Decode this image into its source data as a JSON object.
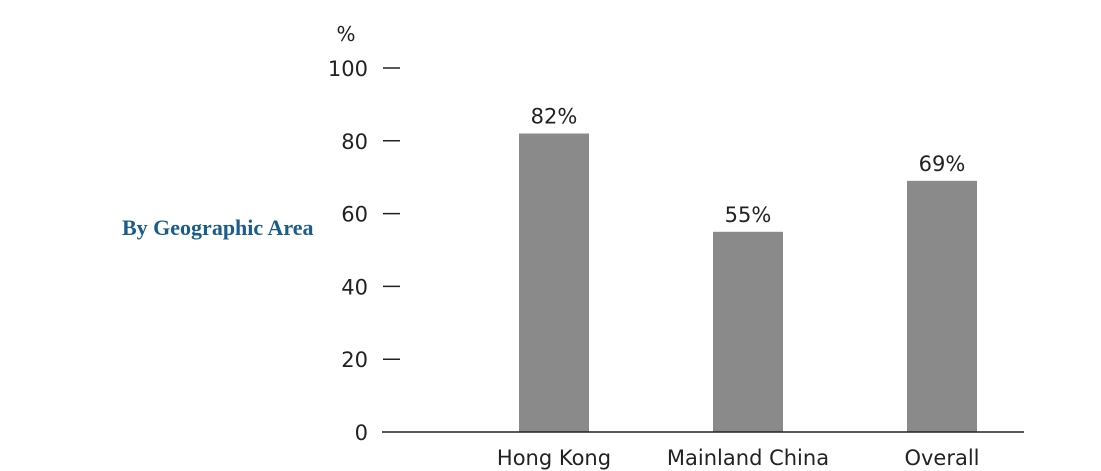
{
  "side_title": "By Geographic Area",
  "chart_data": {
    "type": "bar",
    "categories": [
      "Hong Kong",
      "Mainland China",
      "Overall"
    ],
    "values": [
      82,
      55,
      69
    ],
    "value_labels": [
      "82%",
      "55%",
      "69%"
    ],
    "ylabel": "%",
    "ylim": [
      0,
      100
    ],
    "yticks": [
      0,
      20,
      40,
      60,
      80,
      100
    ],
    "ytick_labels": [
      "0",
      "20",
      "40",
      "60",
      "80",
      "100"
    ],
    "grid": false,
    "bar_color": "#8a8a8a",
    "axis_color": "#222222"
  }
}
